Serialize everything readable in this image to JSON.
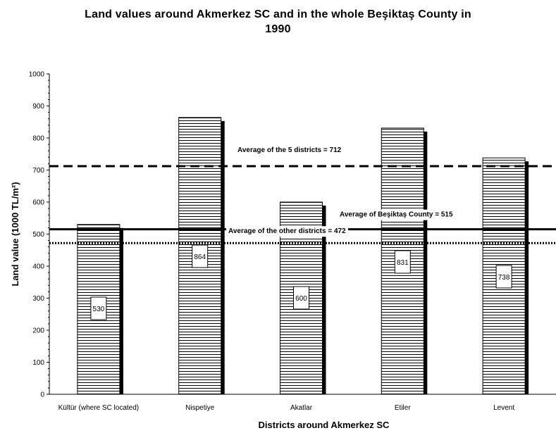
{
  "chart_data": {
    "type": "bar",
    "title_line1": "Land values around Akmerkez SC and in the whole Beşiktaş County in",
    "title_line2": "1990",
    "xlabel": "Districts around Akmerkez SC",
    "ylabel": "Land value (1000 TL/m²)",
    "ylim": [
      0,
      1000
    ],
    "yticks": [
      "0",
      "100",
      "200",
      "300",
      "400",
      "500",
      "600",
      "700",
      "800",
      "900",
      "1000"
    ],
    "grid": false,
    "categories": [
      "Kültür (where SC located)",
      "Nispetiye",
      "Akatlar",
      "Etiler",
      "Levent"
    ],
    "values": [
      530,
      864,
      600,
      831,
      738
    ],
    "value_labels": [
      "530",
      "864",
      "600",
      "831",
      "738"
    ],
    "reference_lines": [
      {
        "label": "Average of the 5 districts = 712",
        "value": 712,
        "style": "dashed"
      },
      {
        "label": "Average of Beşiktaş County = 515",
        "value": 515,
        "style": "solid"
      },
      {
        "label": "Average of the other districts = 472",
        "value": 472,
        "style": "dotted"
      }
    ]
  }
}
